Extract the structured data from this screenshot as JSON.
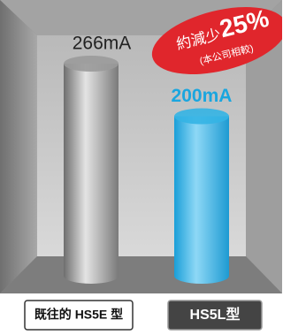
{
  "chart_data": {
    "type": "bar",
    "categories": [
      "既往的 HS5E 型",
      "HS5L型"
    ],
    "values": [
      266,
      200
    ],
    "value_labels": [
      "266mA",
      "200mA"
    ],
    "colors": [
      "#9a9a9a",
      "#34b4e4"
    ],
    "label_colors": [
      "#222222",
      "#1aa6df"
    ],
    "badge": {
      "text": "約減少",
      "number": "25%",
      "note": "(本公司相較)"
    }
  }
}
